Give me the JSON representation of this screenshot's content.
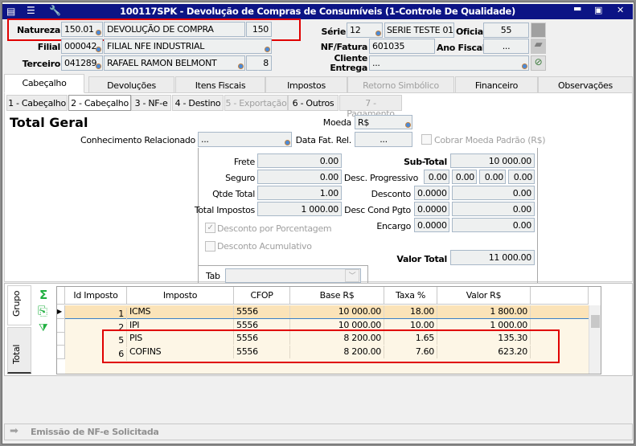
{
  "window": {
    "title": "100117SPK - Devolução de Compras de Consumíveis (1-Controle De Qualidade)",
    "controls": [
      "minimize",
      "maximize",
      "close"
    ]
  },
  "header": {
    "natureza": {
      "label": "Natureza",
      "code": "150.01",
      "desc": "DEVOLUÇÃO DE COMPRA",
      "num": "150"
    },
    "filial": {
      "label": "Filial",
      "code": "000042",
      "desc": "FILIAL NFE INDUSTRIAL"
    },
    "terceiro": {
      "label": "Terceiro",
      "code": "041289",
      "desc": "RAFAEL RAMON BELMONT",
      "num": "8"
    },
    "serie": {
      "label": "Série",
      "code": "12",
      "desc": "SERIE TESTE 01.1"
    },
    "oficial": {
      "label": "Oficial",
      "value": "55"
    },
    "nf": {
      "label": "NF/Fatura",
      "value": "601035"
    },
    "ano": {
      "label": "Ano Fiscal",
      "value": "..."
    },
    "cliente": {
      "label1": "Cliente",
      "label2": "Entrega",
      "value": "..."
    }
  },
  "tabs": [
    "Cabeçalho",
    "Devoluções",
    "Itens Fiscais",
    "Impostos",
    "Retorno Simbólico",
    "Financeiro",
    "Observações"
  ],
  "subtabs": [
    "1 - Cabeçalho",
    "2 - Cabeçalho",
    "3 - NF-e",
    "4 - Destino",
    "5 - Exportação",
    "6 - Outros",
    "7 - Pagamento"
  ],
  "main": {
    "title": "Total Geral",
    "moeda": {
      "label": "Moeda",
      "value": "R$"
    },
    "conhecimento": {
      "label": "Conhecimento Relacionado",
      "value": "..."
    },
    "datafat": {
      "label": "Data Fat. Rel.",
      "value": "..."
    },
    "cobrar": {
      "label": "Cobrar Moeda Padrão (R$)",
      "checked": false
    },
    "frete": {
      "label": "Frete",
      "value": "0.00"
    },
    "seguro": {
      "label": "Seguro",
      "value": "0.00"
    },
    "qtde": {
      "label": "Qtde Total",
      "value": "1.00"
    },
    "impostos": {
      "label": "Total Impostos",
      "value": "1 000.00"
    },
    "subtotal": {
      "label": "Sub-Total",
      "value": "10 000.00"
    },
    "descprog": {
      "label": "Desc. Progressivo",
      "values": [
        "0.00",
        "0.00",
        "0.00",
        "0.00"
      ]
    },
    "desconto": {
      "label": "Desconto",
      "pct": "0.0000",
      "value": "0.00"
    },
    "desccond": {
      "label": "Desc Cond Pgto",
      "pct": "0.0000",
      "value": "0.00"
    },
    "encargo": {
      "label": "Encargo",
      "pct": "0.0000",
      "value": "0.00"
    },
    "descpct": {
      "label": "Desconto por Porcentagem",
      "checked": true
    },
    "descacum": {
      "label": "Desconto Acumulativo",
      "checked": false
    },
    "valortotal": {
      "label": "Valor Total",
      "value": "11 000.00"
    },
    "tab": {
      "label": "Tab",
      "value": ""
    }
  },
  "side_tabs": [
    "Grupo",
    "Total"
  ],
  "grid": {
    "columns": [
      "Id Imposto",
      "Imposto",
      "CFOP",
      "Base R$",
      "Taxa %",
      "Valor R$"
    ],
    "rows": [
      [
        "1",
        "ICMS",
        "5556",
        "10 000.00",
        "18.00",
        "1 800.00"
      ],
      [
        "2",
        "IPI",
        "5556",
        "10 000.00",
        "10.00",
        "1 000.00"
      ],
      [
        "5",
        "PIS",
        "5556",
        "8 200.00",
        "1.65",
        "135.30"
      ],
      [
        "6",
        "COFINS",
        "5556",
        "8 200.00",
        "7.60",
        "623.20"
      ]
    ],
    "selected_row": 0
  },
  "status": {
    "text": "Emissão de NF-e Solicitada"
  },
  "colors": {
    "titlebar": "#0c1485",
    "highlight": "#e00000",
    "selected_row": "#fbe3b8",
    "row_bg": "#fdf6e6"
  }
}
